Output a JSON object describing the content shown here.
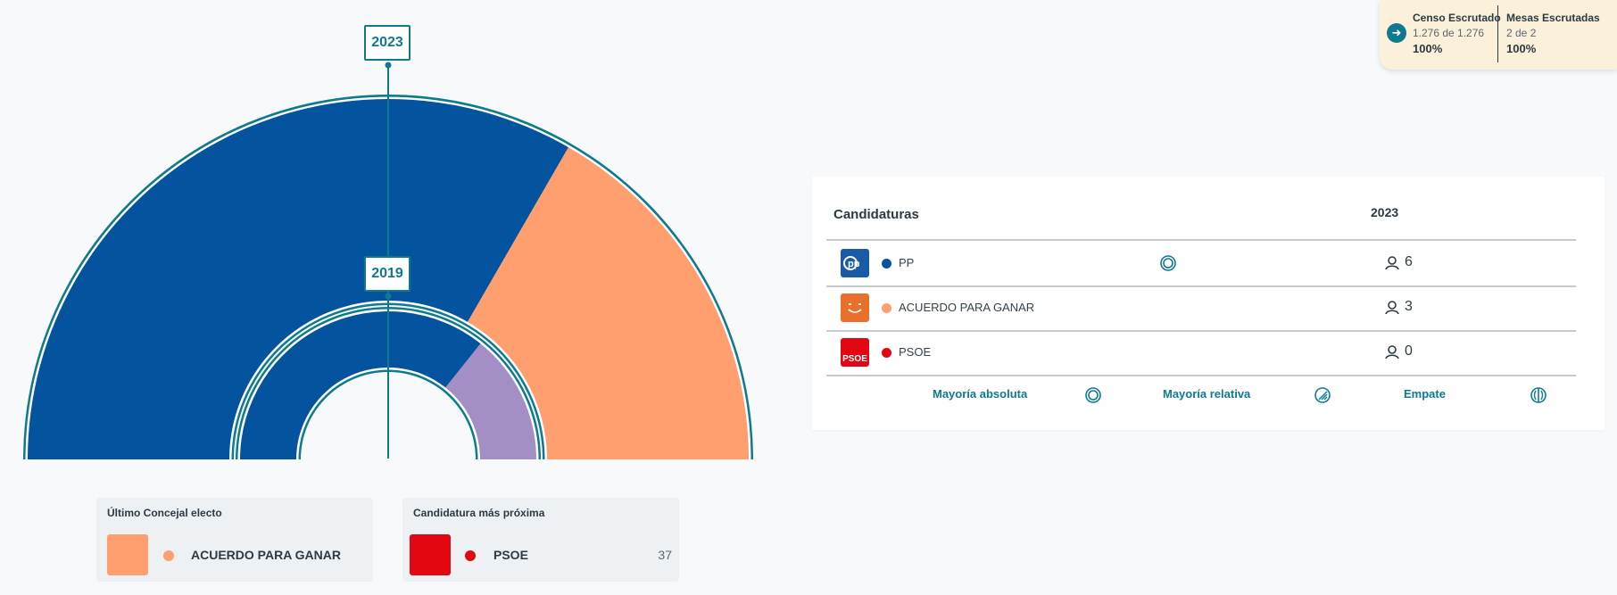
{
  "hemicycle": {
    "outer_year": "2023",
    "inner_year": "2019",
    "outer": [
      {
        "party": "PP",
        "seats": 6,
        "color": "#04539e"
      },
      {
        "party": "ACUERDO PARA GANAR",
        "seats": 3,
        "color": "#ff9e6e"
      }
    ],
    "inner": [
      {
        "seats": 5,
        "color": "#04539e"
      },
      {
        "seats": 2,
        "color": "#a38fc6"
      }
    ],
    "ring_color": "#0d7a8f"
  },
  "status": {
    "censo_title": "Censo Escrutado",
    "censo_sub": "1.276 de 1.276",
    "censo_pct": "100%",
    "mesas_title": "Mesas Escrutadas",
    "mesas_sub": "2 de 2",
    "mesas_pct": "100%",
    "arrow_icon": "arrow-right-icon"
  },
  "table": {
    "header_candidaturas": "Candidaturas",
    "header_year": "2023",
    "rows": [
      {
        "name": "PP",
        "seats": "6",
        "color": "#04539e",
        "logo_text": "pp",
        "logo_bg": "#1a5ba6",
        "majority": "absolute"
      },
      {
        "name": "ACUERDO PARA GANAR",
        "seats": "3",
        "color": "#ff9e6e",
        "logo_text": "☺",
        "logo_bg": "#e8702a",
        "majority": ""
      },
      {
        "name": "PSOE",
        "seats": "0",
        "color": "#e30613",
        "logo_text": "PSOE",
        "logo_bg": "#e30613",
        "majority": ""
      }
    ],
    "legend": {
      "absoluta": "Mayoría absoluta",
      "relativa": "Mayoría relativa",
      "empate": "Empate"
    }
  },
  "ultimo": {
    "title": "Último Concejal electo",
    "party": "ACUERDO PARA GANAR",
    "color": "#ff9e6e"
  },
  "proxima": {
    "title": "Candidatura más próxima",
    "party": "PSOE",
    "color": "#e30613",
    "votes": "37"
  }
}
